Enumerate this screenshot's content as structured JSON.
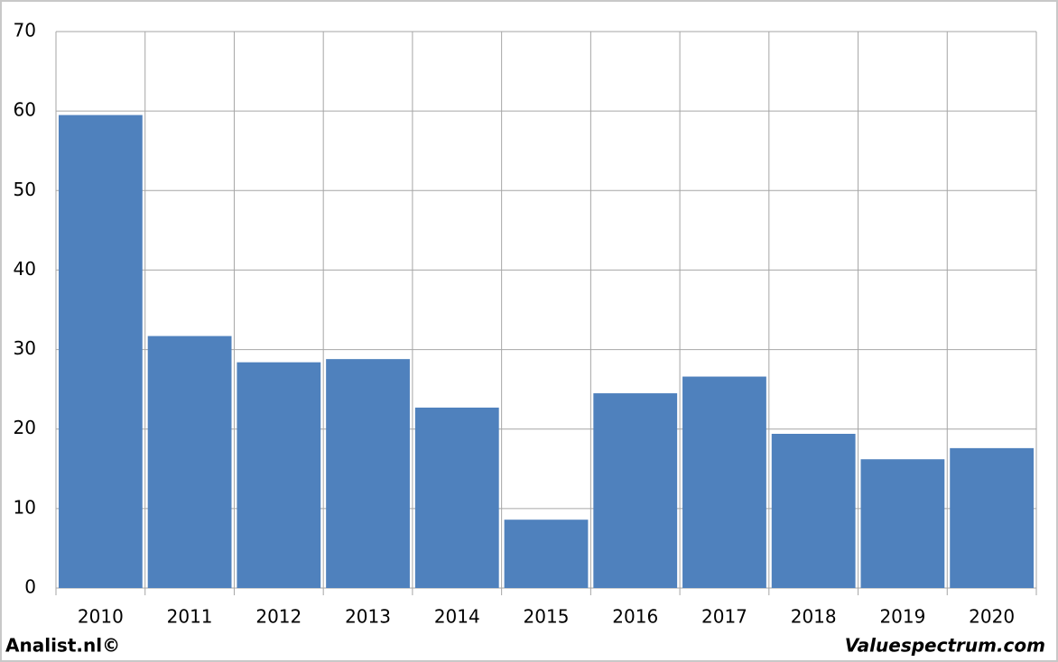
{
  "chart_data": {
    "type": "bar",
    "categories": [
      "2010",
      "2011",
      "2012",
      "2013",
      "2014",
      "2015",
      "2016",
      "2017",
      "2018",
      "2019",
      "2020"
    ],
    "values": [
      59.5,
      31.7,
      28.4,
      28.8,
      22.7,
      8.6,
      24.5,
      26.6,
      19.4,
      16.2,
      17.6
    ],
    "color": "#4f81bd",
    "ylim": [
      0,
      70
    ],
    "yticks": [
      0,
      10,
      20,
      30,
      40,
      50,
      60,
      70
    ],
    "grid": true
  },
  "footer": {
    "left": "Analist.nl©",
    "right": "Valuespectrum.com"
  }
}
